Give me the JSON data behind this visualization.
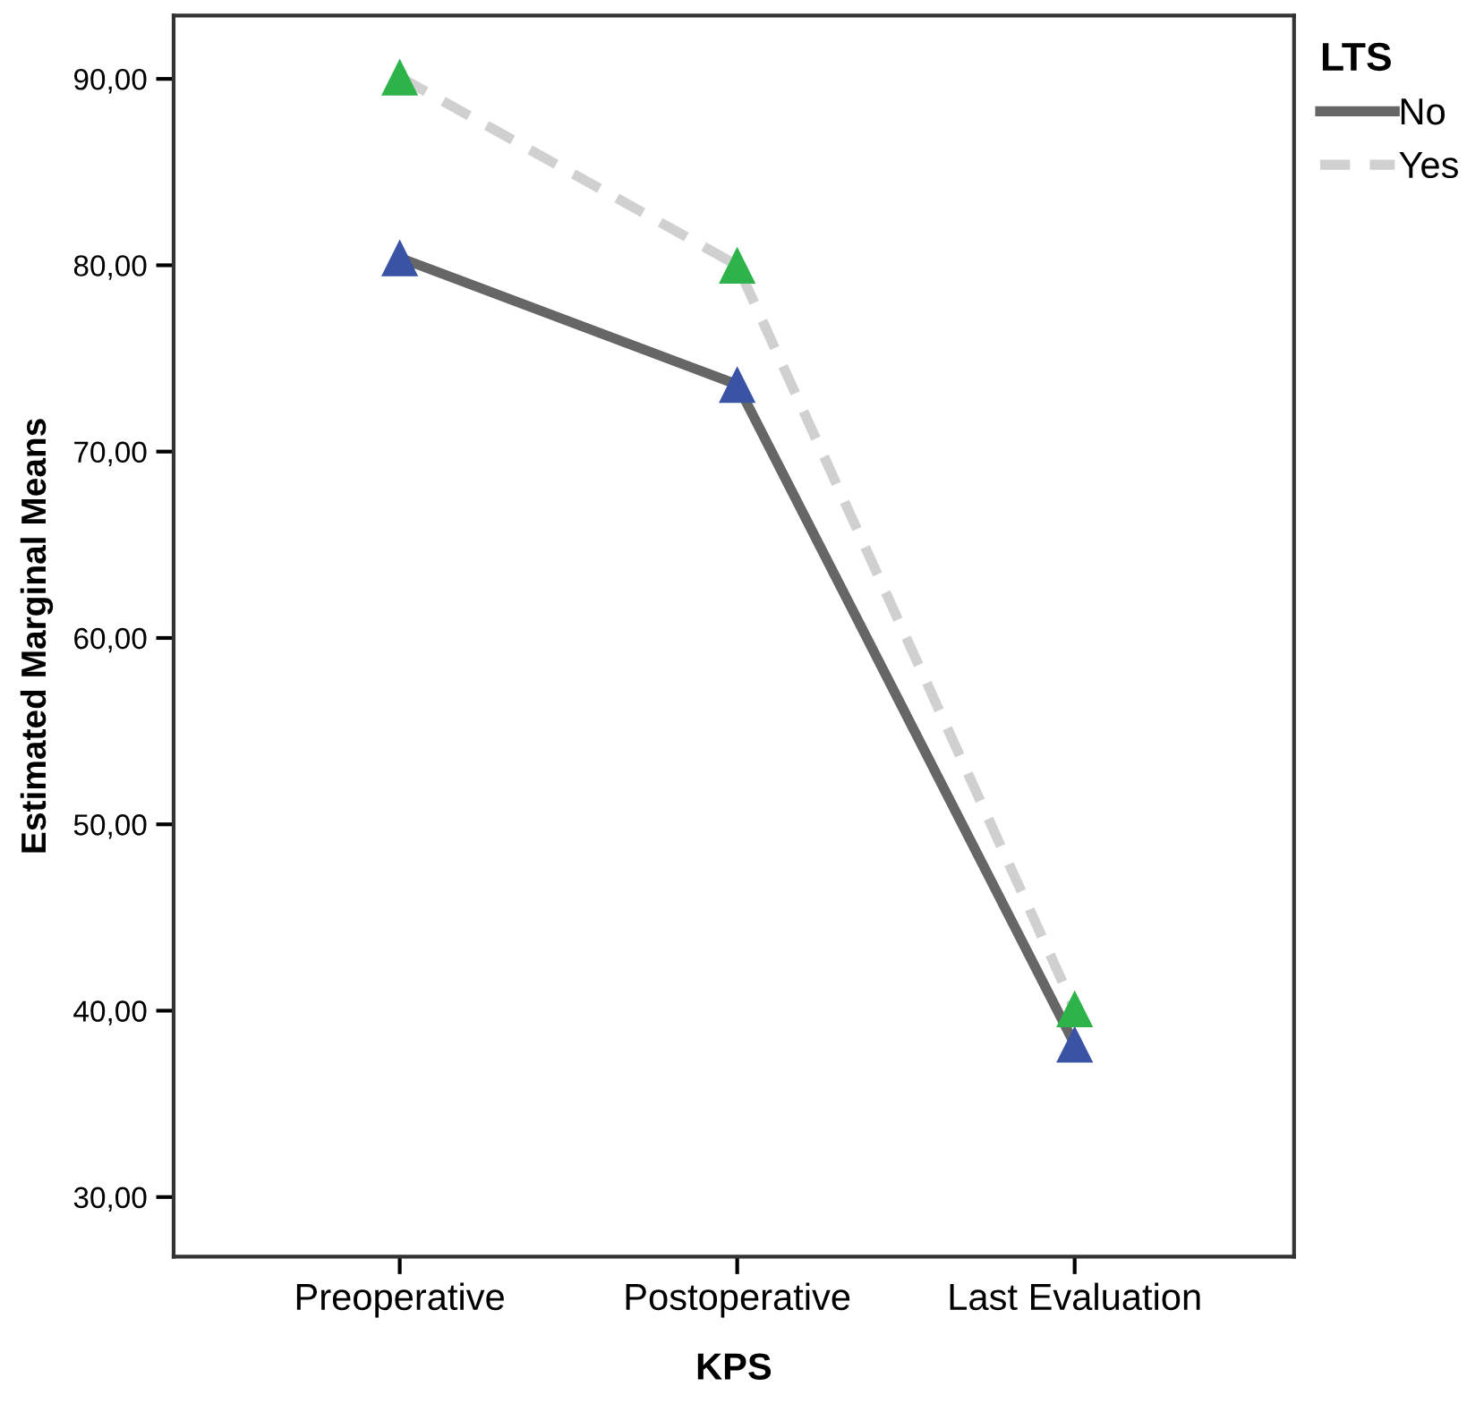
{
  "chart_data": {
    "type": "line",
    "xlabel": "KPS",
    "ylabel": "Estimated Marginal Means",
    "legend_title": "LTS",
    "categories": [
      "Preoperative",
      "Postoperative",
      "Last Evaluation"
    ],
    "series": [
      {
        "name": "No",
        "color": "#666666",
        "line_style": "solid",
        "colors": [
          "#3a53a4",
          "#3a53a4",
          "#3a53a4"
        ],
        "values": [
          80.4,
          73.6,
          38.2
        ]
      },
      {
        "name": "Yes",
        "color": "#d0d0d0",
        "line_style": "dashed",
        "colors": [
          "#2eb34a",
          "#2eb34a",
          "#2eb34a"
        ],
        "values": [
          90.1,
          80.0,
          40.1
        ]
      }
    ],
    "ylim": [
      26.8,
      93.4
    ],
    "yticks": [
      {
        "value": 30,
        "label": "30,00"
      },
      {
        "value": 40,
        "label": "40,00"
      },
      {
        "value": 50,
        "label": "50,00"
      },
      {
        "value": 60,
        "label": "60,00"
      },
      {
        "value": 70,
        "label": "70,00"
      },
      {
        "value": 80,
        "label": "80,00"
      },
      {
        "value": 90,
        "label": "90,00"
      }
    ],
    "marker": "triangle",
    "grid": false,
    "legend": "top right"
  }
}
